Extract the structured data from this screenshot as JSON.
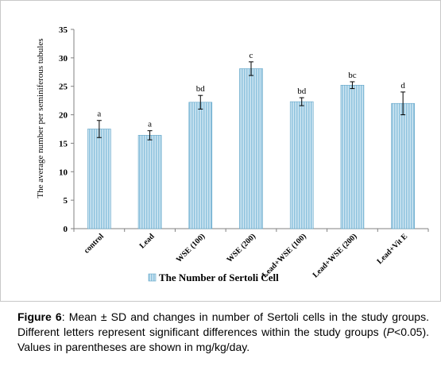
{
  "chart_data": {
    "type": "bar",
    "title": "",
    "xlabel": "",
    "ylabel": "The average number per seminiferous tubules",
    "ylim": [
      0,
      35
    ],
    "yticks": [
      0,
      5,
      10,
      15,
      20,
      25,
      30,
      35
    ],
    "categories": [
      "control",
      "Lead",
      "WSE (100)",
      "WSE (200)",
      "Lead+WSE (100)",
      "Lead+WSE (200)",
      "Lead+Vit E"
    ],
    "series": [
      {
        "name": "The Number of Sertoli Cell",
        "values": [
          17.5,
          16.4,
          22.2,
          28.1,
          22.3,
          25.2,
          22.0
        ],
        "errors": [
          1.5,
          0.8,
          1.2,
          1.2,
          0.7,
          0.6,
          2.0
        ],
        "labels": [
          "a",
          "a",
          "bd",
          "c",
          "bd",
          "bc",
          "d"
        ]
      }
    ],
    "bar_color": "#a9d2e6",
    "bar_stroke": "#5fa3c7",
    "legend_position": "bottom",
    "grid": false
  },
  "caption": {
    "label": "Figure 6",
    "text_part1": ": Mean ± SD and changes in number of Sertoli cells in the study groups. Different letters represent significant differences within the study groups (",
    "p_symbol": "P",
    "text_part2": "<0.05). Values in parentheses are shown in mg/kg/day."
  }
}
